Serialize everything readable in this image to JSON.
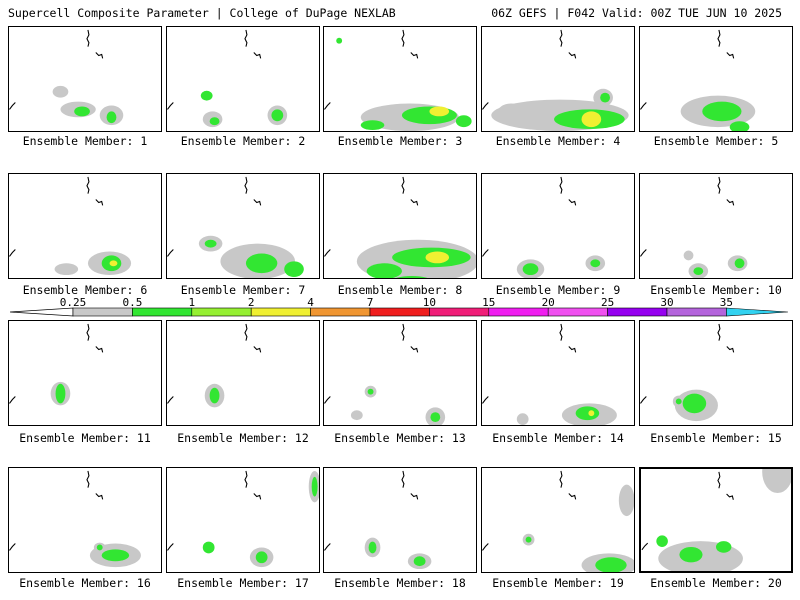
{
  "header": {
    "left": "Supercell Composite Parameter | College of DuPage NEXLAB",
    "right": "06Z GEFS | F042 Valid: 00Z TUE JUN 10 2025"
  },
  "legend": {
    "ticks": [
      "0.25",
      "0.5",
      "1",
      "2",
      "4",
      "7",
      "10",
      "15",
      "20",
      "25",
      "30",
      "35"
    ],
    "colors": [
      "#c8c8c8",
      "#32e632",
      "#96f032",
      "#f0f032",
      "#f09632",
      "#f01e1e",
      "#f01e78",
      "#f01ef0",
      "#f050f0",
      "#9600f0",
      "#b464dc",
      "#32d2f0"
    ]
  },
  "panels": [
    {
      "label": "Ensemble Member: 1",
      "blobs": [
        [
          60,
          92,
          8,
          6,
          1
        ],
        [
          78,
          110,
          18,
          8,
          1
        ],
        [
          82,
          112,
          8,
          5,
          2
        ],
        [
          112,
          116,
          12,
          10,
          1
        ],
        [
          112,
          118,
          5,
          6,
          2
        ]
      ]
    },
    {
      "label": "Ensemble Member: 2",
      "blobs": [
        [
          206,
          96,
          6,
          5,
          2
        ],
        [
          212,
          120,
          10,
          8,
          1
        ],
        [
          214,
          122,
          5,
          4,
          2
        ],
        [
          278,
          116,
          10,
          10,
          1
        ],
        [
          278,
          116,
          6,
          6,
          2
        ]
      ]
    },
    {
      "label": "Ensemble Member: 3",
      "blobs": [
        [
          338,
          40,
          3,
          3,
          2
        ],
        [
          410,
          118,
          50,
          14,
          1
        ],
        [
          430,
          116,
          28,
          9,
          2
        ],
        [
          440,
          112,
          10,
          5,
          3
        ],
        [
          372,
          126,
          12,
          5,
          2
        ],
        [
          465,
          122,
          8,
          6,
          2
        ]
      ]
    },
    {
      "label": "Ensemble Member: 4",
      "blobs": [
        [
          510,
          114,
          14,
          10,
          1
        ],
        [
          560,
          116,
          70,
          16,
          1
        ],
        [
          590,
          120,
          36,
          10,
          2
        ],
        [
          592,
          120,
          10,
          8,
          3
        ],
        [
          604,
          98,
          10,
          9,
          1
        ],
        [
          606,
          98,
          5,
          5,
          2
        ]
      ]
    },
    {
      "label": "Ensemble Member: 5",
      "blobs": [
        [
          718,
          112,
          38,
          16,
          1
        ],
        [
          722,
          112,
          20,
          10,
          2
        ],
        [
          740,
          128,
          10,
          6,
          2
        ]
      ]
    },
    {
      "label": "Ensemble Member: 6",
      "blobs": [
        [
          66,
          270,
          12,
          6,
          1
        ],
        [
          110,
          264,
          22,
          12,
          1
        ],
        [
          112,
          264,
          10,
          8,
          2
        ],
        [
          114,
          264,
          4,
          3,
          3
        ]
      ]
    },
    {
      "label": "Ensemble Member: 7",
      "blobs": [
        [
          210,
          244,
          12,
          8,
          1
        ],
        [
          210,
          244,
          6,
          4,
          2
        ],
        [
          258,
          262,
          38,
          18,
          1
        ],
        [
          262,
          264,
          16,
          10,
          2
        ],
        [
          295,
          270,
          10,
          8,
          2
        ]
      ]
    },
    {
      "label": "Ensemble Member: 8",
      "blobs": [
        [
          418,
          262,
          62,
          22,
          1
        ],
        [
          432,
          258,
          40,
          10,
          2
        ],
        [
          438,
          258,
          12,
          6,
          3
        ],
        [
          384,
          272,
          18,
          8,
          2
        ],
        [
          412,
          282,
          20,
          5,
          2
        ]
      ]
    },
    {
      "label": "Ensemble Member: 9",
      "blobs": [
        [
          530,
          270,
          14,
          10,
          1
        ],
        [
          530,
          270,
          8,
          6,
          2
        ],
        [
          596,
          264,
          10,
          8,
          1
        ],
        [
          596,
          264,
          5,
          4,
          2
        ]
      ]
    },
    {
      "label": "Ensemble Member: 10",
      "blobs": [
        [
          688,
          256,
          5,
          5,
          1
        ],
        [
          698,
          272,
          10,
          8,
          1
        ],
        [
          698,
          272,
          5,
          4,
          2
        ],
        [
          738,
          264,
          10,
          8,
          1
        ],
        [
          740,
          264,
          5,
          5,
          2
        ]
      ]
    },
    {
      "label": "Ensemble Member: 11",
      "blobs": [
        [
          60,
          394,
          10,
          12,
          1
        ],
        [
          60,
          394,
          5,
          10,
          2
        ]
      ]
    },
    {
      "label": "Ensemble Member: 12",
      "blobs": [
        [
          214,
          396,
          10,
          12,
          1
        ],
        [
          214,
          396,
          5,
          8,
          2
        ]
      ]
    },
    {
      "label": "Ensemble Member: 13",
      "blobs": [
        [
          370,
          392,
          6,
          6,
          1
        ],
        [
          370,
          392,
          3,
          3,
          2
        ],
        [
          436,
          418,
          10,
          10,
          1
        ],
        [
          436,
          418,
          5,
          5,
          2
        ],
        [
          356,
          416,
          6,
          5,
          1
        ]
      ]
    },
    {
      "label": "Ensemble Member: 14",
      "blobs": [
        [
          590,
          416,
          28,
          12,
          1
        ],
        [
          588,
          414,
          12,
          7,
          2
        ],
        [
          592,
          414,
          3,
          3,
          3
        ],
        [
          522,
          420,
          6,
          6,
          1
        ]
      ]
    },
    {
      "label": "Ensemble Member: 15",
      "blobs": [
        [
          696,
          406,
          22,
          16,
          1
        ],
        [
          694,
          404,
          12,
          10,
          2
        ],
        [
          678,
          402,
          6,
          6,
          1
        ],
        [
          678,
          402,
          3,
          3,
          2
        ]
      ]
    },
    {
      "label": "Ensemble Member: 16",
      "blobs": [
        [
          116,
          556,
          26,
          12,
          1
        ],
        [
          116,
          556,
          14,
          6,
          2
        ],
        [
          100,
          548,
          6,
          5,
          1
        ],
        [
          100,
          548,
          3,
          3,
          2
        ]
      ]
    },
    {
      "label": "Ensemble Member: 17",
      "blobs": [
        [
          316,
          486,
          6,
          16,
          1
        ],
        [
          316,
          486,
          3,
          10,
          2
        ],
        [
          262,
          558,
          12,
          10,
          1
        ],
        [
          262,
          558,
          6,
          6,
          2
        ],
        [
          208,
          548,
          6,
          6,
          2
        ]
      ]
    },
    {
      "label": "Ensemble Member: 18",
      "blobs": [
        [
          372,
          548,
          8,
          10,
          1
        ],
        [
          372,
          548,
          4,
          6,
          2
        ],
        [
          420,
          562,
          12,
          8,
          1
        ],
        [
          420,
          562,
          6,
          5,
          2
        ]
      ]
    },
    {
      "label": "Ensemble Member: 19",
      "blobs": [
        [
          610,
          566,
          28,
          12,
          1
        ],
        [
          612,
          566,
          16,
          8,
          2
        ],
        [
          528,
          540,
          6,
          6,
          1
        ],
        [
          528,
          540,
          3,
          3,
          2
        ],
        [
          628,
          500,
          8,
          16,
          1
        ]
      ]
    },
    {
      "label": "Ensemble Member: 20",
      "blobs": [
        [
          700,
          560,
          44,
          18,
          1
        ],
        [
          690,
          556,
          12,
          8,
          2
        ],
        [
          724,
          548,
          8,
          6,
          2
        ],
        [
          660,
          542,
          6,
          6,
          2
        ],
        [
          780,
          470,
          16,
          22,
          1
        ]
      ]
    }
  ]
}
